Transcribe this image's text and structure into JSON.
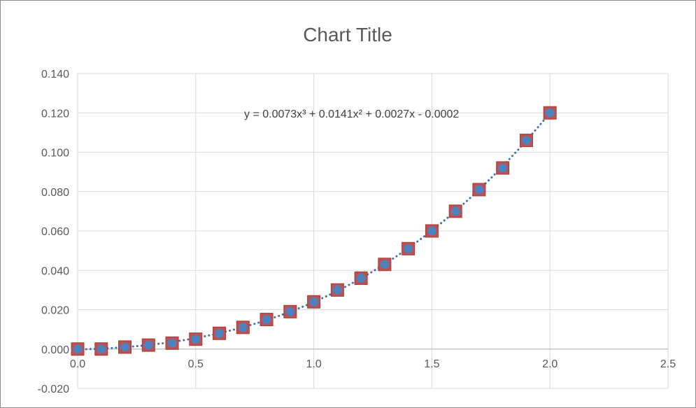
{
  "chart_data": {
    "type": "scatter",
    "title": "Chart Title",
    "xlabel": "",
    "ylabel": "",
    "xlim": [
      0.0,
      2.5
    ],
    "ylim": [
      -0.02,
      0.14
    ],
    "x_ticks": [
      "0.0",
      "0.5",
      "1.0",
      "1.5",
      "2.0",
      "2.5"
    ],
    "y_ticks": [
      "-0.020",
      "0.000",
      "0.020",
      "0.040",
      "0.060",
      "0.080",
      "0.100",
      "0.120",
      "0.140"
    ],
    "grid": true,
    "legend": "none",
    "series": [
      {
        "x": [
          0.0,
          0.1,
          0.2,
          0.3,
          0.4,
          0.5,
          0.6,
          0.7,
          0.8,
          0.9,
          1.0,
          1.1,
          1.2,
          1.3,
          1.4,
          1.5,
          1.6,
          1.7,
          1.8,
          1.9,
          2.0
        ],
        "y": [
          0.0,
          0.0,
          0.001,
          0.002,
          0.003,
          0.005,
          0.008,
          0.011,
          0.015,
          0.019,
          0.024,
          0.03,
          0.036,
          0.043,
          0.051,
          0.06,
          0.07,
          0.081,
          0.092,
          0.106,
          0.12
        ],
        "marker_fill": "#c0504d",
        "marker_stroke": "#a33b3b",
        "inner_dot": "#4f81bd"
      }
    ],
    "trendline": {
      "type": "polynomial",
      "order": 3,
      "coefficients": [
        0.0073,
        0.0141,
        0.0027,
        -0.0002
      ],
      "equation_label": "y = 0.0073x³ + 0.0141x² + 0.0027x - 0.0002",
      "color": "#3e6fb0"
    }
  },
  "colors": {
    "gridline": "#d9d9d9",
    "axis": "#bfbfbf",
    "text": "#595959"
  }
}
